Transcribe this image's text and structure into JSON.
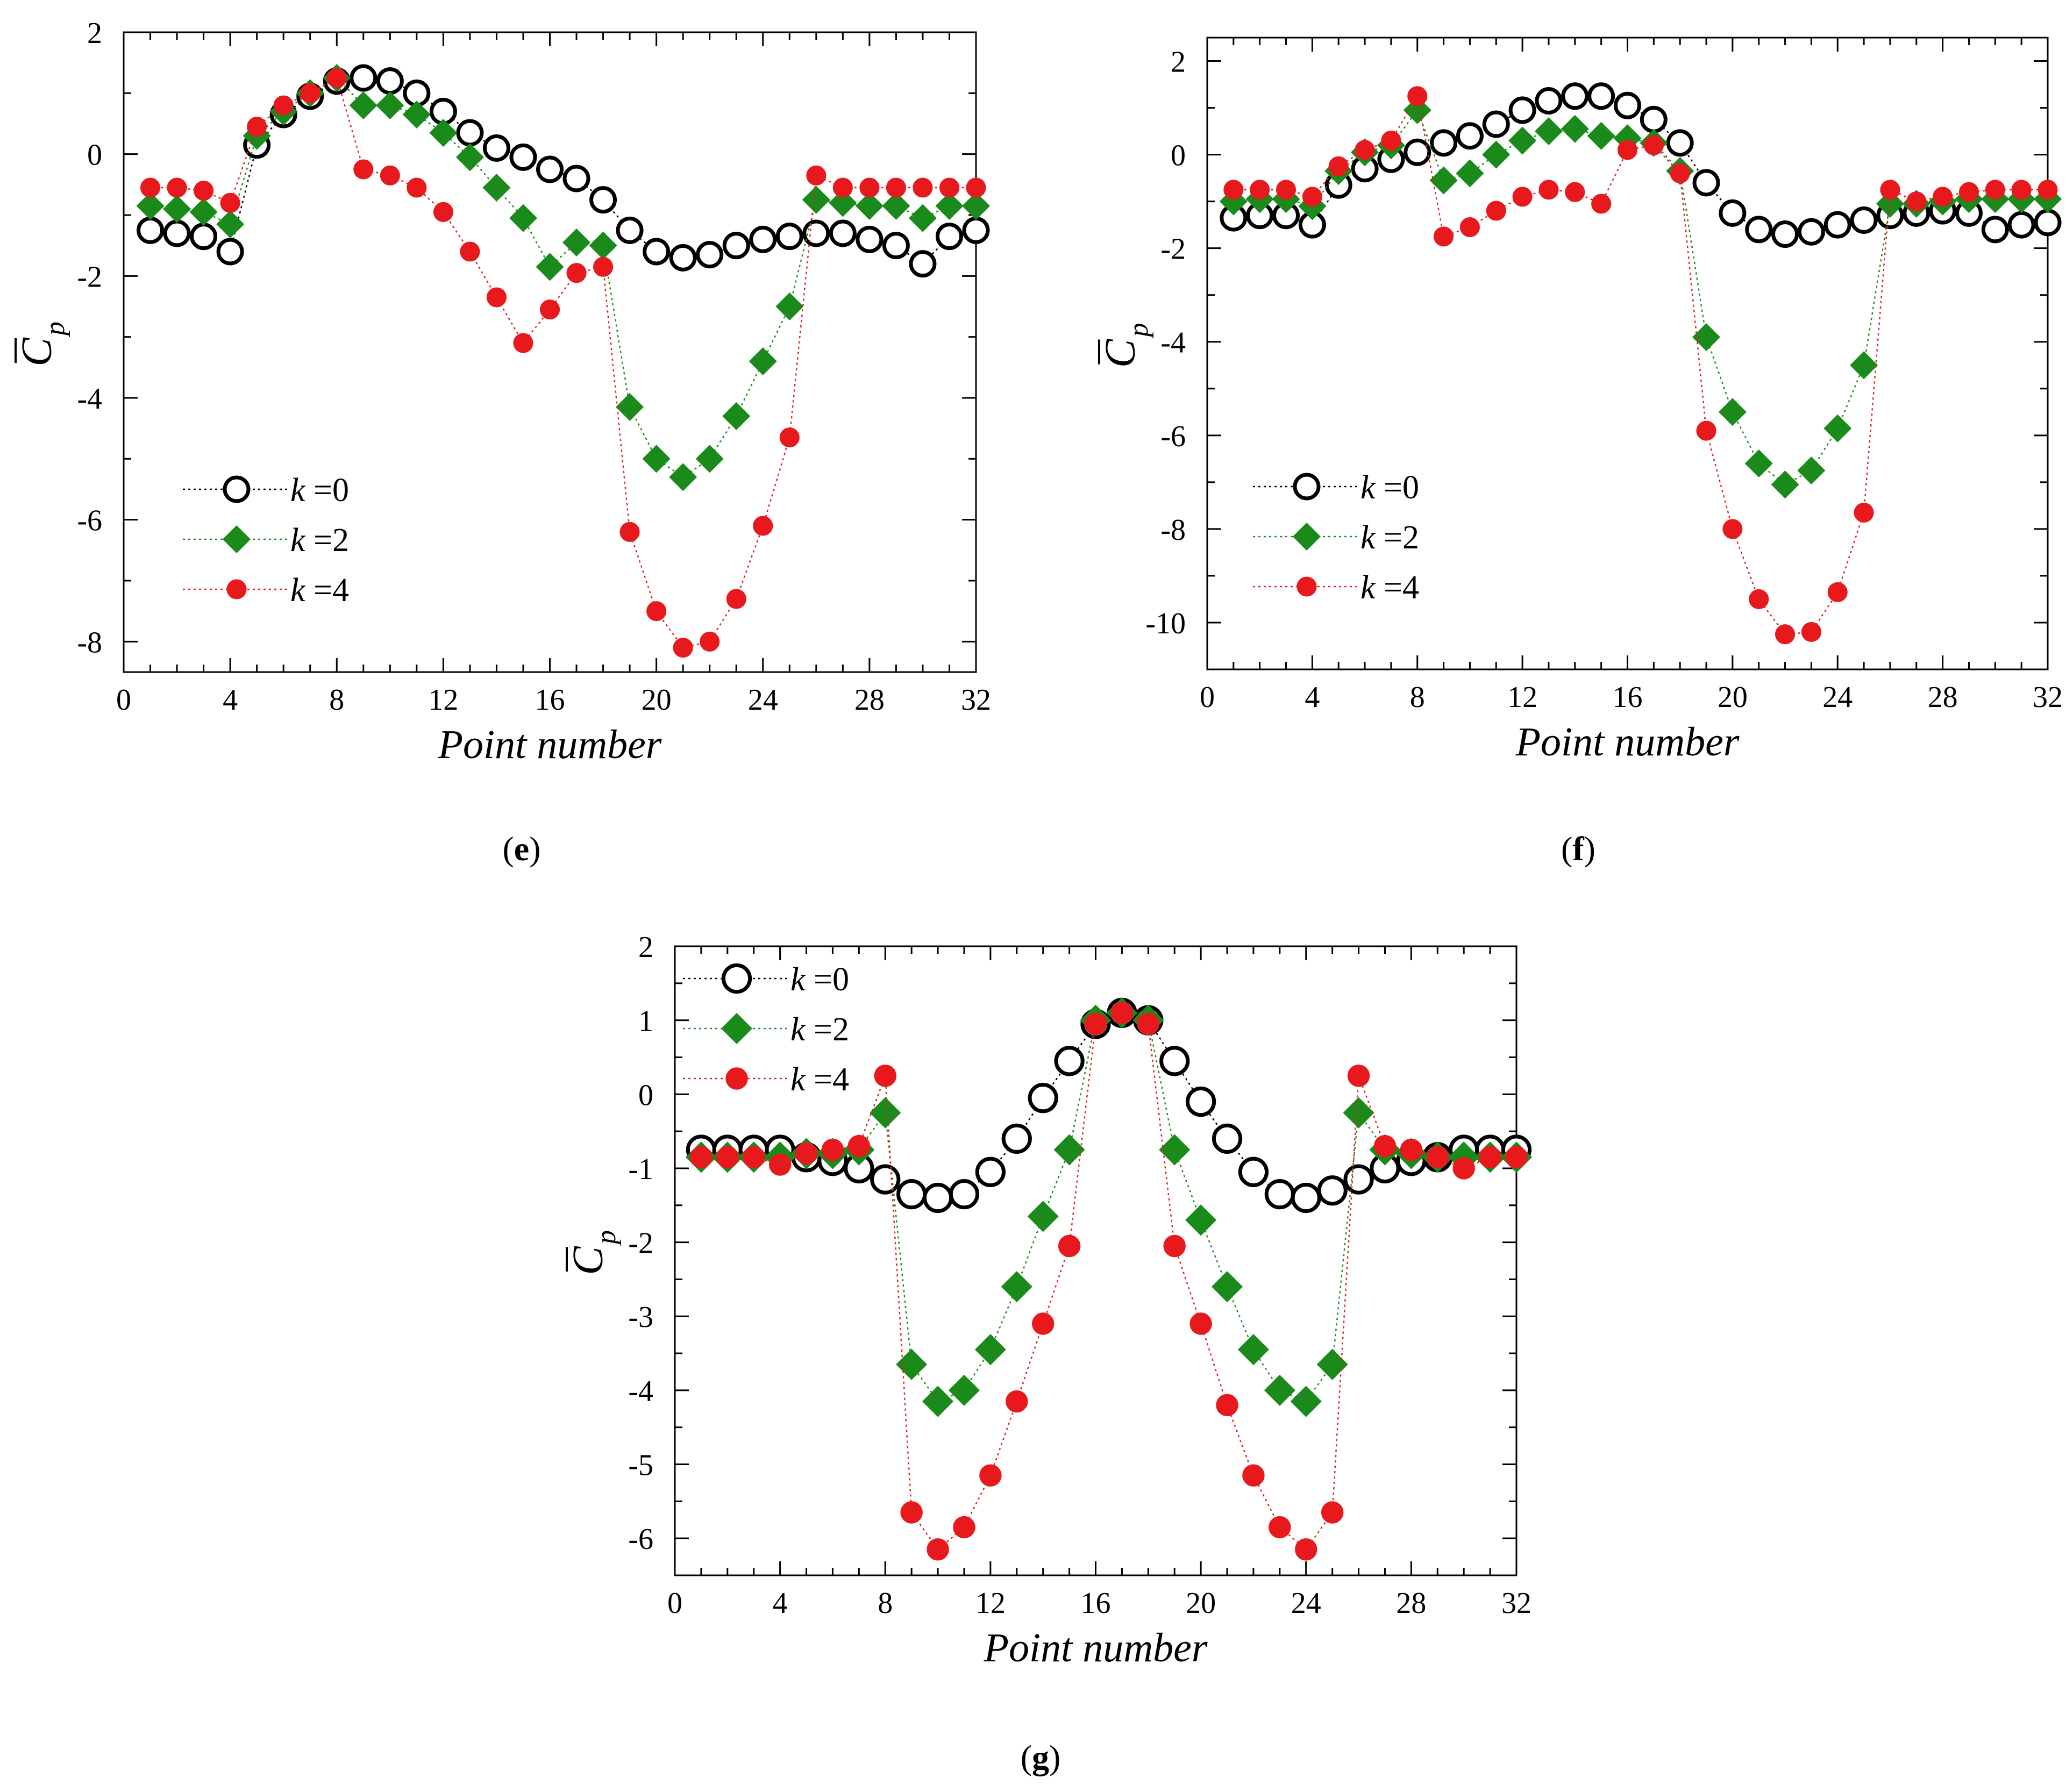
{
  "chart_data": [
    {
      "id": "e",
      "type": "scatter",
      "caption_letter": "e",
      "xlabel": "Point number",
      "ylabel": "C",
      "ylabel_sub": "p",
      "xlim": [
        0,
        32
      ],
      "ylim": [
        -8.5,
        2
      ],
      "xticks": [
        "0",
        "4",
        "8",
        "12",
        "16",
        "20",
        "24",
        "28",
        "32"
      ],
      "xtick_values": [
        0,
        4,
        8,
        12,
        16,
        20,
        24,
        28,
        32
      ],
      "yticks": [
        "2",
        "0",
        "-2",
        "-4",
        "-6",
        "-8"
      ],
      "ytick_values": [
        2,
        0,
        -2,
        -4,
        -6,
        -8
      ],
      "legend_position": "lower-left",
      "x": [
        1,
        2,
        3,
        4,
        5,
        6,
        7,
        8,
        9,
        10,
        11,
        12,
        13,
        14,
        15,
        16,
        17,
        18,
        19,
        20,
        21,
        22,
        23,
        24,
        25,
        26,
        27,
        28,
        29,
        30,
        31,
        32
      ],
      "series": [
        {
          "name": "k =0",
          "k_label": "k",
          "k_value": "=0",
          "marker": "open-circle",
          "color": "#000000",
          "values": [
            -1.25,
            -1.3,
            -1.35,
            -1.6,
            0.15,
            0.65,
            0.95,
            1.2,
            1.25,
            1.2,
            1.0,
            0.7,
            0.35,
            0.1,
            -0.05,
            -0.25,
            -0.4,
            -0.75,
            -1.25,
            -1.6,
            -1.7,
            -1.65,
            -1.5,
            -1.4,
            -1.35,
            -1.3,
            -1.3,
            -1.4,
            -1.5,
            -1.8,
            -1.35,
            -1.25
          ]
        },
        {
          "name": "k =2",
          "k_label": "k",
          "k_value": "=2",
          "marker": "diamond",
          "color": "#1a8a1a",
          "values": [
            -0.85,
            -0.9,
            -0.95,
            -1.15,
            0.3,
            0.7,
            1.0,
            1.25,
            0.8,
            0.8,
            0.65,
            0.35,
            -0.05,
            -0.55,
            -1.05,
            -1.85,
            -1.45,
            -1.5,
            -4.15,
            -5.0,
            -5.3,
            -5.0,
            -4.3,
            -3.4,
            -2.5,
            -0.75,
            -0.8,
            -0.85,
            -0.85,
            -1.05,
            -0.85,
            -0.85
          ]
        },
        {
          "name": "k =4",
          "k_label": "k",
          "k_value": "=4",
          "marker": "filled-circle",
          "color": "#e8191d",
          "values": [
            -0.55,
            -0.55,
            -0.6,
            -0.8,
            0.45,
            0.8,
            1.0,
            1.25,
            -0.25,
            -0.35,
            -0.55,
            -0.95,
            -1.6,
            -2.35,
            -3.1,
            -2.55,
            -1.95,
            -1.85,
            -6.2,
            -7.5,
            -8.1,
            -8.0,
            -7.3,
            -6.1,
            -4.65,
            -0.35,
            -0.55,
            -0.55,
            -0.55,
            -0.55,
            -0.55,
            -0.55
          ]
        }
      ]
    },
    {
      "id": "f",
      "type": "scatter",
      "caption_letter": "f",
      "xlabel": "Point number",
      "ylabel": "C",
      "ylabel_sub": "p",
      "xlim": [
        0,
        32
      ],
      "ylim": [
        -11,
        2.5
      ],
      "xticks": [
        "0",
        "4",
        "8",
        "12",
        "16",
        "20",
        "24",
        "28",
        "32"
      ],
      "xtick_values": [
        0,
        4,
        8,
        12,
        16,
        20,
        24,
        28,
        32
      ],
      "yticks": [
        "2",
        "0",
        "-2",
        "-4",
        "-6",
        "-8",
        "-10"
      ],
      "ytick_values": [
        2,
        0,
        -2,
        -4,
        -6,
        -8,
        -10
      ],
      "legend_position": "lower-left",
      "x": [
        1,
        2,
        3,
        4,
        5,
        6,
        7,
        8,
        9,
        10,
        11,
        12,
        13,
        14,
        15,
        16,
        17,
        18,
        19,
        20,
        21,
        22,
        23,
        24,
        25,
        26,
        27,
        28,
        29,
        30,
        31,
        32
      ],
      "series": [
        {
          "name": "k =0",
          "k_label": "k",
          "k_value": "=0",
          "marker": "open-circle",
          "color": "#000000",
          "values": [
            -1.35,
            -1.3,
            -1.3,
            -1.5,
            -0.65,
            -0.3,
            -0.1,
            0.05,
            0.25,
            0.4,
            0.65,
            0.95,
            1.15,
            1.25,
            1.25,
            1.05,
            0.75,
            0.25,
            -0.6,
            -1.25,
            -1.6,
            -1.7,
            -1.65,
            -1.5,
            -1.4,
            -1.3,
            -1.25,
            -1.2,
            -1.25,
            -1.6,
            -1.5,
            -1.45
          ]
        },
        {
          "name": "k =2",
          "k_label": "k",
          "k_value": "=2",
          "marker": "diamond",
          "color": "#1a8a1a",
          "values": [
            -1.0,
            -0.95,
            -0.95,
            -1.1,
            -0.35,
            0.05,
            0.2,
            0.95,
            -0.55,
            -0.4,
            0.0,
            0.3,
            0.5,
            0.55,
            0.4,
            0.35,
            0.25,
            -0.35,
            -3.9,
            -5.5,
            -6.6,
            -7.05,
            -6.75,
            -5.85,
            -4.5,
            -1.05,
            -1.05,
            -1.0,
            -0.95,
            -0.95,
            -0.95,
            -0.95
          ]
        },
        {
          "name": "k =4",
          "k_label": "k",
          "k_value": "=4",
          "marker": "filled-circle",
          "color": "#e8191d",
          "values": [
            -0.75,
            -0.75,
            -0.75,
            -0.9,
            -0.25,
            0.1,
            0.3,
            1.25,
            -1.75,
            -1.55,
            -1.2,
            -0.9,
            -0.75,
            -0.8,
            -1.05,
            0.1,
            0.2,
            -0.4,
            -5.9,
            -8.0,
            -9.5,
            -10.25,
            -10.2,
            -9.35,
            -7.65,
            -0.75,
            -1.0,
            -0.9,
            -0.8,
            -0.75,
            -0.75,
            -0.75
          ]
        }
      ]
    },
    {
      "id": "g",
      "type": "scatter",
      "caption_letter": "g",
      "xlabel": "Point number",
      "ylabel": "C",
      "ylabel_sub": "p",
      "xlim": [
        0,
        32
      ],
      "ylim": [
        -6.5,
        2
      ],
      "xticks": [
        "0",
        "4",
        "8",
        "12",
        "16",
        "20",
        "24",
        "28",
        "32"
      ],
      "xtick_values": [
        0,
        4,
        8,
        12,
        16,
        20,
        24,
        28,
        32
      ],
      "yticks": [
        "2",
        "1",
        "0",
        "-1",
        "-2",
        "-3",
        "-4",
        "-5",
        "-6"
      ],
      "ytick_values": [
        2,
        1,
        0,
        -1,
        -2,
        -3,
        -4,
        -5,
        -6
      ],
      "legend_position": "top-left",
      "x": [
        1,
        2,
        3,
        4,
        5,
        6,
        7,
        8,
        9,
        10,
        11,
        12,
        13,
        14,
        15,
        16,
        17,
        18,
        19,
        20,
        21,
        22,
        23,
        24,
        25,
        26,
        27,
        28,
        29,
        30,
        31,
        32
      ],
      "series": [
        {
          "name": "k =0",
          "k_label": "k",
          "k_value": "=0",
          "marker": "open-circle",
          "color": "#000000",
          "values": [
            -0.75,
            -0.75,
            -0.75,
            -0.75,
            -0.85,
            -0.9,
            -1.0,
            -1.15,
            -1.35,
            -1.4,
            -1.35,
            -1.05,
            -0.6,
            -0.05,
            0.45,
            0.95,
            1.1,
            1.0,
            0.45,
            -0.1,
            -0.6,
            -1.05,
            -1.35,
            -1.4,
            -1.3,
            -1.15,
            -1.0,
            -0.9,
            -0.85,
            -0.75,
            -0.75,
            -0.75
          ]
        },
        {
          "name": "k =2",
          "k_label": "k",
          "k_value": "=2",
          "marker": "diamond",
          "color": "#1a8a1a",
          "values": [
            -0.85,
            -0.85,
            -0.85,
            -0.85,
            -0.8,
            -0.8,
            -0.75,
            -0.25,
            -3.65,
            -4.15,
            -4.0,
            -3.45,
            -2.6,
            -1.65,
            -0.75,
            1.0,
            1.1,
            1.0,
            -0.75,
            -1.7,
            -2.6,
            -3.45,
            -4.0,
            -4.15,
            -3.65,
            -0.25,
            -0.75,
            -0.8,
            -0.85,
            -0.85,
            -0.85,
            -0.85
          ]
        },
        {
          "name": "k =4",
          "k_label": "k",
          "k_value": "=4",
          "marker": "filled-circle",
          "color": "#e8191d",
          "values": [
            -0.85,
            -0.85,
            -0.85,
            -0.95,
            -0.8,
            -0.75,
            -0.7,
            0.25,
            -5.65,
            -6.15,
            -5.85,
            -5.15,
            -4.15,
            -3.1,
            -2.05,
            0.95,
            1.1,
            0.95,
            -2.05,
            -3.1,
            -4.2,
            -5.15,
            -5.85,
            -6.15,
            -5.65,
            0.25,
            -0.7,
            -0.75,
            -0.85,
            -1.0,
            -0.85,
            -0.85
          ]
        }
      ]
    }
  ],
  "captions": {
    "e": "e",
    "f": "f",
    "g": "g"
  }
}
